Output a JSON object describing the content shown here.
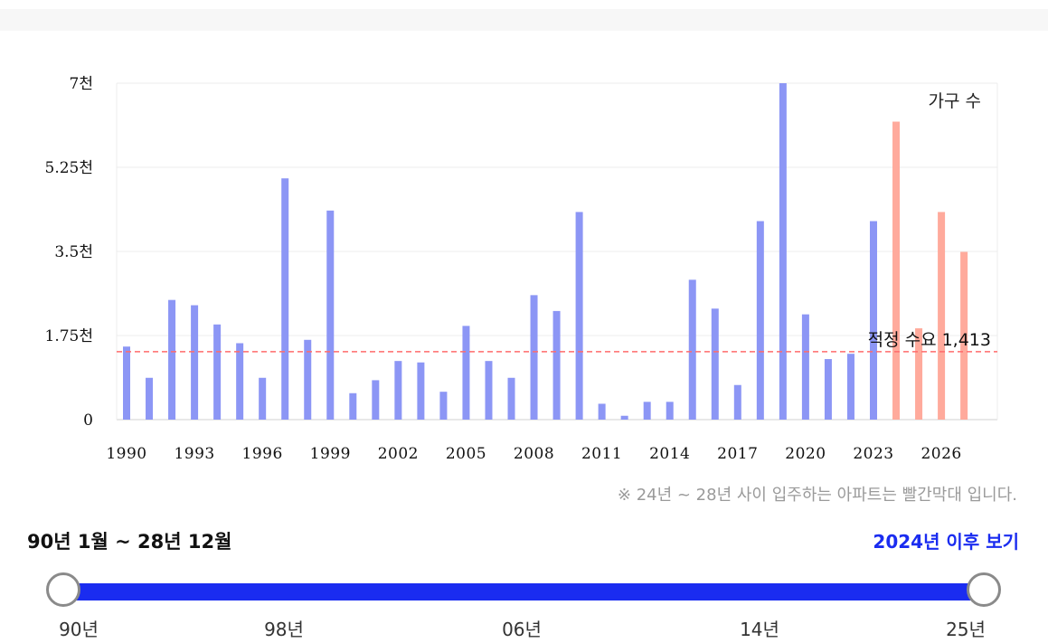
{
  "chart_data": {
    "type": "bar",
    "categories": [
      "1990",
      "1991",
      "1992",
      "1993",
      "1994",
      "1995",
      "1996",
      "1997",
      "1998",
      "1999",
      "2000",
      "2001",
      "2002",
      "2003",
      "2004",
      "2005",
      "2006",
      "2007",
      "2008",
      "2009",
      "2010",
      "2011",
      "2012",
      "2013",
      "2014",
      "2015",
      "2016",
      "2017",
      "2018",
      "2019",
      "2020",
      "2021",
      "2022",
      "2023",
      "2024",
      "2025",
      "2026",
      "2027"
    ],
    "values": [
      1520,
      870,
      2490,
      2380,
      1980,
      1590,
      870,
      5020,
      1660,
      4350,
      550,
      820,
      1220,
      1190,
      580,
      1950,
      1220,
      870,
      2590,
      2260,
      4320,
      330,
      80,
      370,
      370,
      2910,
      2310,
      720,
      4130,
      7000,
      2190,
      1260,
      1370,
      4130,
      6200,
      1900,
      4320,
      3490
    ],
    "x_tick_labels": [
      "1990",
      "1993",
      "1996",
      "1999",
      "2002",
      "2005",
      "2008",
      "2011",
      "2014",
      "2017",
      "2020",
      "2023",
      "2026"
    ],
    "y_tick_labels": [
      "0",
      "1.75천",
      "3.5천",
      "5.25천",
      "7천"
    ],
    "ylim": [
      0,
      7000
    ],
    "series_label": "가구 수",
    "reference_line": {
      "value": 1413,
      "label": "적정 수요 1,413",
      "color": "#ff6b6b"
    },
    "colors": {
      "past": "#8c96f5",
      "future": "#ffaa9c"
    },
    "future_from": "2024",
    "grid": true
  },
  "note": "※ 24년 ~ 28년 사이 입주하는 아파트는 빨간막대 입니다.",
  "range_text": "90년 1월 ~ 28년 12월",
  "after_link": "2024년 이후 보기",
  "slider": {
    "ticks": [
      "90년",
      "98년",
      "06년",
      "14년",
      "25년"
    ],
    "start_value": "90년",
    "end_value": "25년",
    "track_color": "#1a2cf0"
  }
}
